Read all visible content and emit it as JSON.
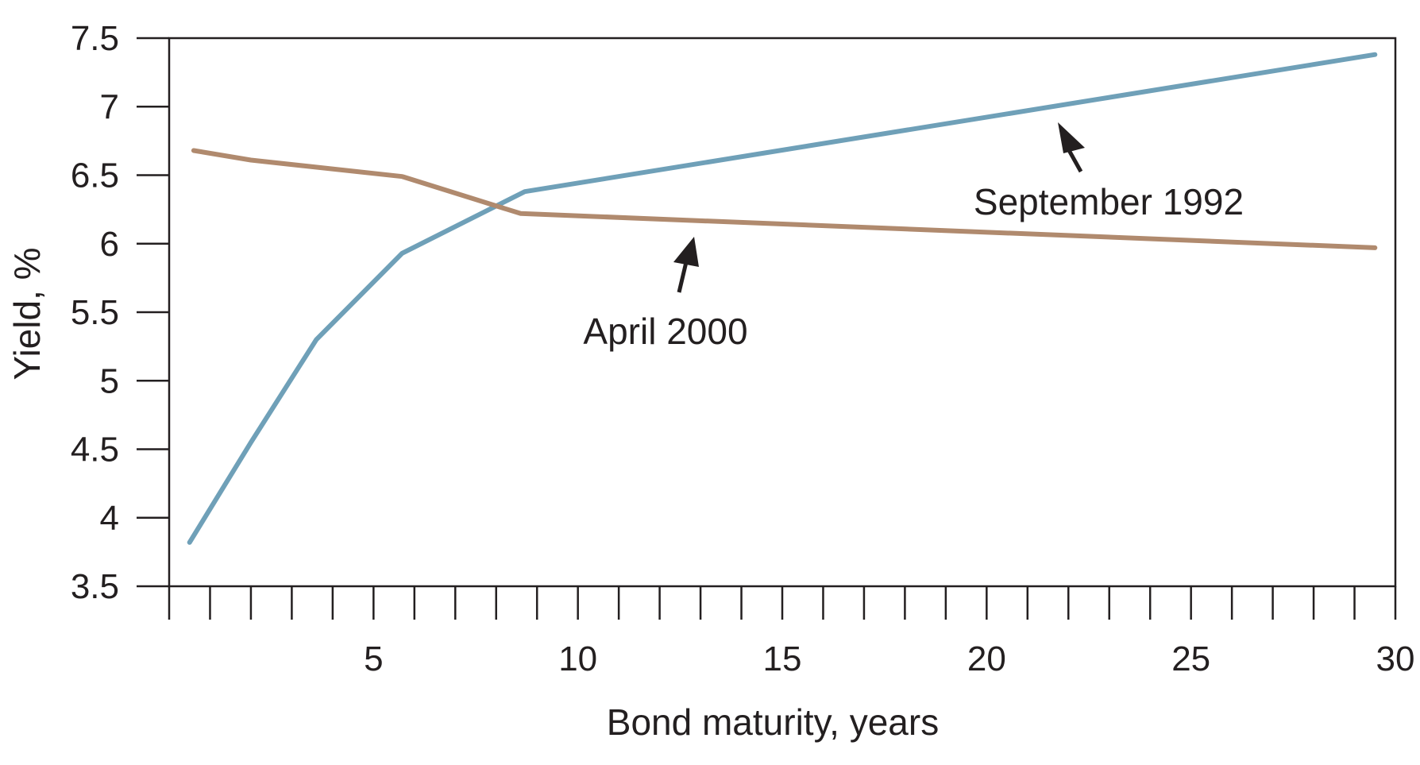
{
  "chart_data": {
    "type": "line",
    "xlabel": "Bond maturity, years",
    "ylabel": "Yield, %",
    "xlim": [
      0,
      30
    ],
    "ylim": [
      3.5,
      7.5
    ],
    "x_ticks": [
      5,
      10,
      15,
      20,
      25,
      30
    ],
    "y_ticks": [
      3.5,
      4,
      4.5,
      5,
      5.5,
      6,
      6.5,
      7,
      7.5
    ],
    "x_tick_labels": [
      "5",
      "10",
      "15",
      "20",
      "25",
      "30"
    ],
    "y_tick_labels": [
      "3.5",
      "4",
      "4.5",
      "5",
      "5.5",
      "6",
      "6.5",
      "7",
      "7.5"
    ],
    "grid": false,
    "series": [
      {
        "name": "September 1992",
        "color": "#6fa0b8",
        "x": [
          0.5,
          2,
          3.6,
          5.7,
          8.7,
          29.5
        ],
        "y": [
          3.82,
          4.55,
          5.3,
          5.93,
          6.38,
          7.38
        ]
      },
      {
        "name": "April 2000",
        "color": "#b08a6e",
        "x": [
          0.6,
          2,
          5.7,
          8.6,
          29.5
        ],
        "y": [
          6.68,
          6.61,
          6.49,
          6.22,
          5.97
        ]
      }
    ],
    "annotations": [
      {
        "text": "September 1992",
        "series": 0
      },
      {
        "text": "April 2000",
        "series": 1
      }
    ]
  }
}
